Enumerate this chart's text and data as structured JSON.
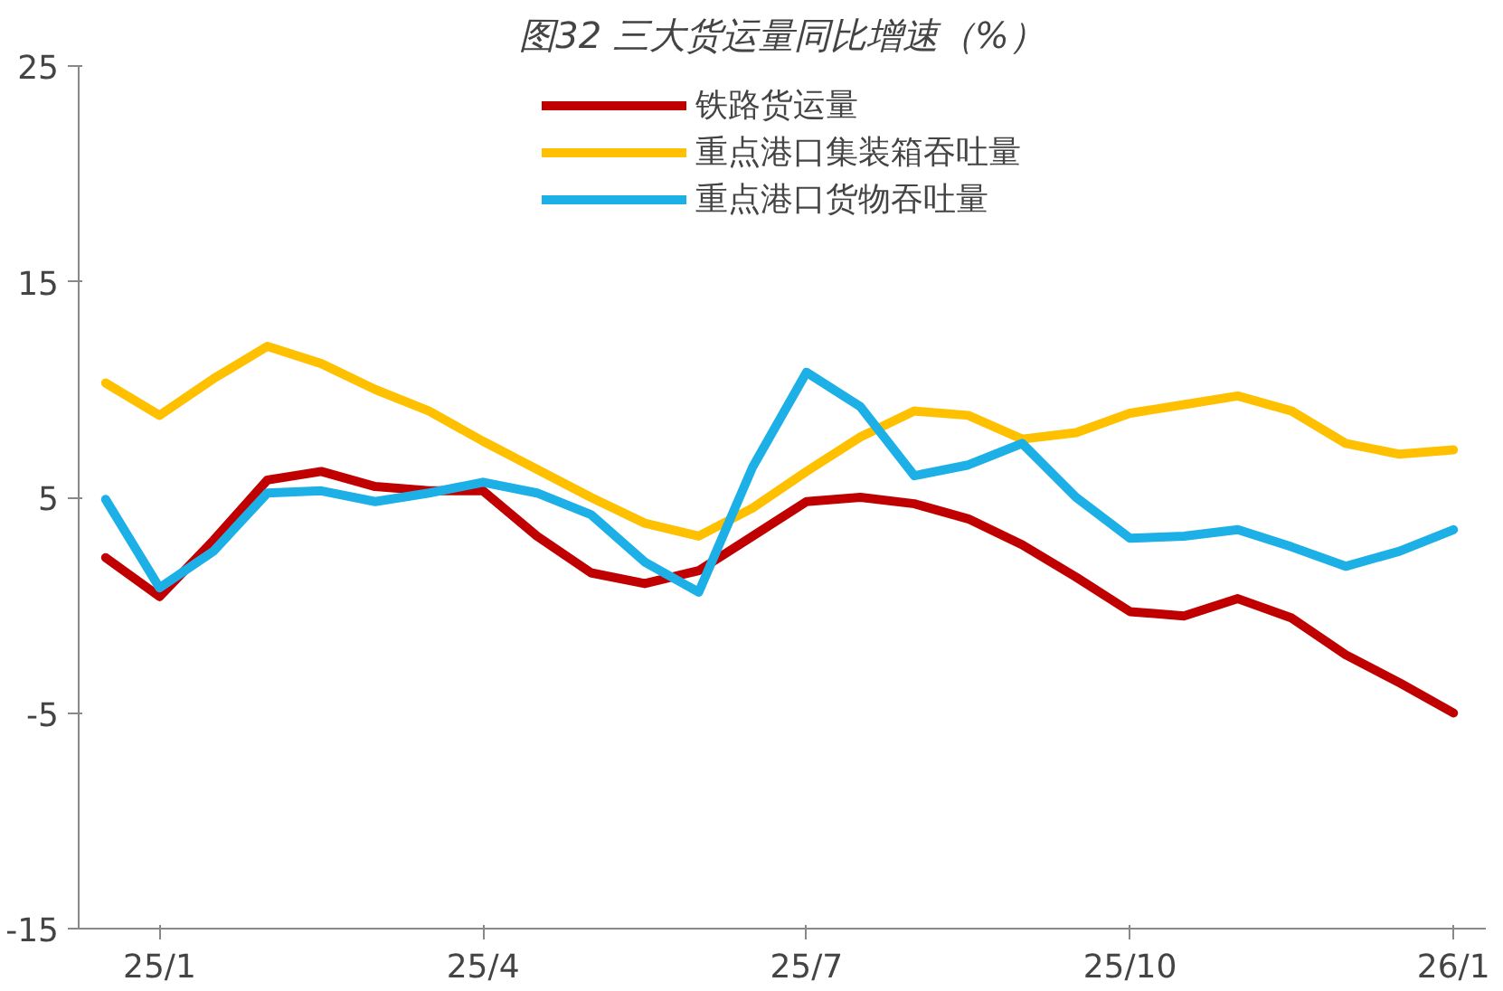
{
  "chart_data": {
    "type": "line",
    "title": "图32 三大货运量同比增速（%）",
    "categories": [
      null,
      "25/1",
      null,
      null,
      null,
      null,
      null,
      "25/4",
      null,
      null,
      null,
      null,
      null,
      "25/7",
      null,
      null,
      null,
      null,
      null,
      "25/10",
      null,
      null,
      null,
      null,
      null,
      "26/1"
    ],
    "ylim": [
      -15,
      25
    ],
    "yticks": [
      25,
      15,
      5,
      -5,
      -15
    ],
    "grid": false,
    "legend": "top",
    "line_style": "solid",
    "marker": "none",
    "series": [
      {
        "name": "铁路货运量",
        "color": "#c00000",
        "values": [
          2.2,
          0.4,
          3.0,
          5.8,
          6.2,
          5.5,
          5.3,
          5.3,
          3.2,
          1.5,
          1.0,
          1.6,
          3.2,
          4.8,
          5.0,
          4.7,
          4.0,
          2.8,
          1.3,
          -0.3,
          -0.5,
          0.3,
          -0.6,
          -2.3,
          -3.6,
          -5
        ]
      },
      {
        "name": "重点港口集装箱吞吐量",
        "color": "#ffc000",
        "values": [
          10.3,
          8.8,
          10.5,
          12.0,
          11.2,
          10.0,
          9.0,
          7.6,
          6.3,
          5.0,
          3.8,
          3.2,
          4.5,
          6.2,
          7.8,
          9.0,
          8.8,
          7.7,
          8.0,
          8.9,
          9.3,
          9.7,
          9.0,
          7.5,
          7.0,
          7.2
        ]
      },
      {
        "name": "重点港口货物吞吐量",
        "color": "#1cb0e6",
        "values": [
          4.9,
          0.8,
          2.5,
          5.2,
          5.3,
          4.8,
          5.2,
          5.7,
          5.2,
          4.2,
          2.0,
          0.6,
          6.4,
          10.8,
          9.2,
          6.0,
          6.5,
          7.5,
          5.0,
          3.1,
          3.2,
          3.5,
          2.7,
          1.8,
          2.5,
          3.5
        ]
      }
    ]
  }
}
